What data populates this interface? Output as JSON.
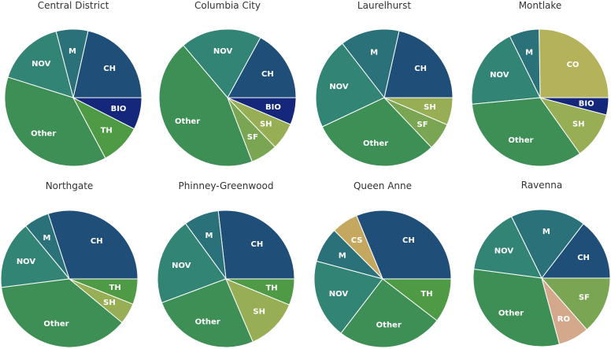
{
  "chart_data": {
    "type": "pie",
    "start_angle_deg": 0,
    "direction": "counterclockwise",
    "colors": {
      "CH": "#1f4e79",
      "BIO": "#14277a",
      "TH": "#4f9a45",
      "SH": "#97ae55",
      "SF": "#7aa653",
      "Other": "#3e8f55",
      "NOV": "#328474",
      "M": "#2a7179",
      "CO": "#b4b35b",
      "CS": "#c4a85f",
      "RO": "#d4a98b"
    },
    "charts": [
      {
        "title": "Central District",
        "labels": [
          "CH",
          "M",
          "NOV",
          "Other",
          "TH",
          "BIO"
        ],
        "values": [
          20,
          7,
          15,
          35,
          9,
          7
        ]
      },
      {
        "title": "Columbia City",
        "labels": [
          "CH",
          "NOV",
          "Other",
          "SF",
          "SH",
          "BIO"
        ],
        "values": [
          16,
          18,
          42,
          6,
          6,
          6
        ]
      },
      {
        "title": "Laurelhurst",
        "labels": [
          "CH",
          "M",
          "NOV",
          "Other",
          "SF",
          "SH"
        ],
        "values": [
          20,
          13,
          20,
          28,
          6,
          6
        ]
      },
      {
        "title": "Montlake",
        "labels": [
          "CO",
          "M",
          "NOV",
          "Other",
          "SH",
          "BIO"
        ],
        "values": [
          25,
          7,
          19,
          33,
          11,
          4
        ]
      },
      {
        "title": "Northgate",
        "labels": [
          "CH",
          "M",
          "NOV",
          "Other",
          "SH",
          "TH"
        ],
        "values": [
          30,
          6,
          16,
          37,
          5,
          6
        ]
      },
      {
        "title": "Phinney-Greenwood",
        "labels": [
          "CH",
          "M",
          "NOV",
          "Other",
          "SH",
          "TH"
        ],
        "values": [
          26,
          8,
          20,
          25,
          12,
          6
        ]
      },
      {
        "title": "Queen Anne",
        "labels": [
          "CH",
          "CS",
          "M",
          "NOV",
          "Other",
          "TH"
        ],
        "values": [
          30,
          6,
          8,
          18,
          24,
          10
        ]
      },
      {
        "title": "Ravenna",
        "labels": [
          "CH",
          "M",
          "NOV",
          "Other",
          "RO",
          "SF"
        ],
        "values": [
          14,
          17,
          15,
          30,
          7,
          13
        ]
      }
    ]
  }
}
